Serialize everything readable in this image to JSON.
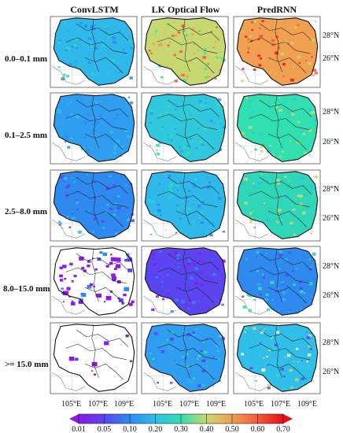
{
  "columns": [
    "ConvLSTM",
    "LK Optical Flow",
    "PredRNN"
  ],
  "rows": [
    "0.0–0.1 mm",
    "0.1–2.5 mm",
    "2.5–8.0 mm",
    "8.0–15.0 mm",
    ">= 15.0 mm"
  ],
  "lat_labels": [
    "28°N",
    "26°N"
  ],
  "lon_labels": [
    "105°E",
    "107°E",
    "109°E"
  ],
  "colorbar": {
    "ticks": [
      "0.01",
      "0.05",
      "0.10",
      "0.20",
      "0.30",
      "0.40",
      "0.50",
      "0.60",
      "0.70"
    ],
    "colors": [
      "#8b1ae8",
      "#5a45f0",
      "#2f8af0",
      "#2fbfe8",
      "#30e0b0",
      "#c8d870",
      "#f0a050",
      "#f45a3a",
      "#e8101a"
    ]
  },
  "panels": [
    {
      "row": 0,
      "col": 0,
      "base": "#2fb8ea",
      "specks": [
        "#30d6c0",
        "#2f8af0"
      ]
    },
    {
      "row": 0,
      "col": 1,
      "base": "#c8d870",
      "specks": [
        "#f0a050",
        "#30e0b0",
        "#f45a3a"
      ]
    },
    {
      "row": 0,
      "col": 2,
      "base": "#f0a050",
      "specks": [
        "#f45a3a",
        "#e8101a",
        "#c8d870"
      ]
    },
    {
      "row": 1,
      "col": 0,
      "base": "#2f9df0",
      "specks": [
        "#2fbfe8",
        "#2f8af0"
      ]
    },
    {
      "row": 1,
      "col": 1,
      "base": "#2fc8dc",
      "specks": [
        "#30e0b0",
        "#2f9df0"
      ]
    },
    {
      "row": 1,
      "col": 2,
      "base": "#30e0b0",
      "specks": [
        "#c8d870",
        "#2fc8dc"
      ]
    },
    {
      "row": 2,
      "col": 0,
      "base": "#2f8af0",
      "specks": [
        "#5a45f0",
        "#2fbfe8"
      ]
    },
    {
      "row": 2,
      "col": 1,
      "base": "#2fb8ea",
      "specks": [
        "#30d6c0",
        "#2f8af0"
      ]
    },
    {
      "row": 2,
      "col": 2,
      "base": "#30d6b8",
      "specks": [
        "#c8d870",
        "#2fbfe8"
      ]
    },
    {
      "row": 3,
      "col": 0,
      "base": "#8b1ae8",
      "specks": [
        "#5a45f0",
        "#2f8af0"
      ]
    },
    {
      "row": 3,
      "col": 1,
      "base": "#5a45f0",
      "specks": [
        "#2f8af0",
        "#8b1ae8"
      ]
    },
    {
      "row": 3,
      "col": 2,
      "base": "#2f8af0",
      "specks": [
        "#2fbfe8",
        "#5a45f0",
        "#30e0b0"
      ]
    },
    {
      "row": 4,
      "col": 0,
      "base": "#8b1ae8",
      "specks": [
        "#5a45f0"
      ]
    },
    {
      "row": 4,
      "col": 1,
      "base": "#2f9df0",
      "specks": [
        "#2fbfe8",
        "#5a45f0",
        "#30e0b0"
      ]
    },
    {
      "row": 4,
      "col": 2,
      "base": "#2fbfe8",
      "specks": [
        "#c8d870",
        "#ffffff",
        "#30e0b0",
        "#5a45f0"
      ]
    }
  ]
}
